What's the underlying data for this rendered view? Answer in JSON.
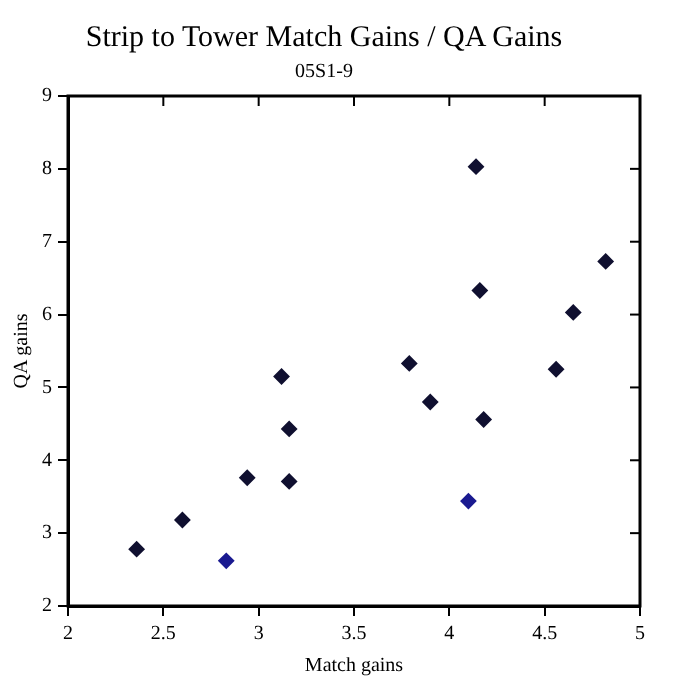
{
  "chart_data": {
    "type": "scatter",
    "title": "Strip to Tower Match Gains / QA Gains",
    "subtitle": "05S1-9",
    "xlabel": "Match gains",
    "ylabel": "QA gains",
    "x": [
      2.36,
      2.6,
      2.83,
      2.94,
      3.12,
      3.16,
      3.16,
      3.79,
      3.9,
      4.1,
      4.14,
      4.16,
      4.18,
      4.56,
      4.65,
      4.82
    ],
    "values": [
      2.78,
      3.18,
      2.62,
      3.76,
      5.15,
      4.43,
      3.71,
      5.33,
      4.8,
      3.44,
      8.03,
      6.33,
      4.56,
      5.25,
      6.03,
      6.73
    ],
    "colors": [
      "#101030",
      "#101030",
      "#1a1a90",
      "#101030",
      "#101030",
      "#101030",
      "#101030",
      "#101030",
      "#101030",
      "#1a1a90",
      "#101030",
      "#101030",
      "#101030",
      "#101030",
      "#101030",
      "#101030"
    ],
    "xlim": [
      2,
      5
    ],
    "xticks": [
      2,
      2.5,
      3,
      3.5,
      4,
      4.5,
      5
    ],
    "ylim": [
      2,
      9
    ],
    "yticks": [
      2,
      3,
      4,
      5,
      6,
      7,
      8,
      9
    ],
    "grid": false,
    "legend": false,
    "marker": "diamond"
  }
}
